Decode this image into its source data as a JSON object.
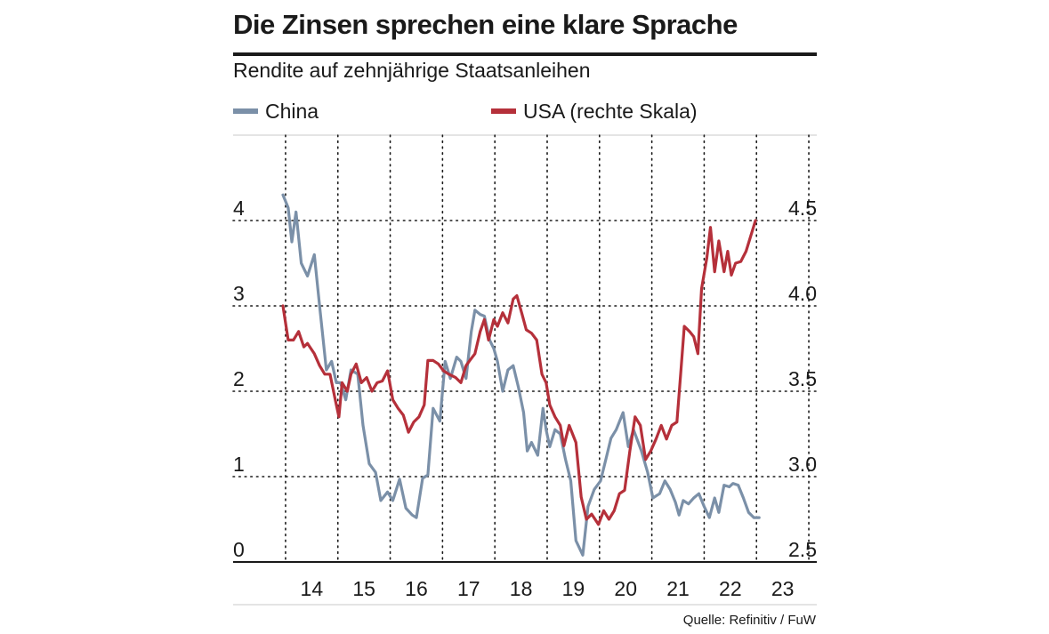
{
  "header": {
    "title": "Die Zinsen sprechen eine klare Sprache",
    "subtitle": "Rendite auf zehnjährige Staatsanleihen",
    "source": "Quelle: Refinitiv / FuW"
  },
  "chart_data": {
    "type": "line",
    "title": "Die Zinsen sprechen eine klare Sprache",
    "subtitle": "Rendite auf zehnjährige Staatsanleihen",
    "x_range": [
      2013.95,
      2023.2
    ],
    "x_ticks": [
      "14",
      "15",
      "16",
      "17",
      "18",
      "19",
      "20",
      "21",
      "22",
      "23"
    ],
    "y_left": {
      "ylim": [
        0,
        4
      ],
      "ticks": [
        "0",
        "1",
        "2",
        "3",
        "4"
      ]
    },
    "y_right": {
      "ylim": [
        2.5,
        4.5
      ],
      "ticks": [
        "2.5",
        "3.0",
        "3.5",
        "4.0",
        "4.5"
      ]
    },
    "grid": "dotted",
    "series": [
      {
        "name": "China",
        "axis": "left",
        "color": "#7b90a8",
        "points": [
          [
            2013.95,
            4.3
          ],
          [
            2014.05,
            4.15
          ],
          [
            2014.12,
            3.75
          ],
          [
            2014.2,
            4.1
          ],
          [
            2014.3,
            3.5
          ],
          [
            2014.42,
            3.35
          ],
          [
            2014.55,
            3.6
          ],
          [
            2014.65,
            3.0
          ],
          [
            2014.78,
            2.25
          ],
          [
            2014.88,
            2.35
          ],
          [
            2014.97,
            2.1
          ],
          [
            2015.05,
            2.1
          ],
          [
            2015.15,
            1.9
          ],
          [
            2015.25,
            2.25
          ],
          [
            2015.38,
            2.2
          ],
          [
            2015.48,
            1.6
          ],
          [
            2015.6,
            1.15
          ],
          [
            2015.72,
            1.05
          ],
          [
            2015.82,
            0.72
          ],
          [
            2015.95,
            0.82
          ],
          [
            2016.05,
            0.72
          ],
          [
            2016.18,
            0.97
          ],
          [
            2016.3,
            0.63
          ],
          [
            2016.42,
            0.55
          ],
          [
            2016.5,
            0.52
          ],
          [
            2016.62,
            0.98
          ],
          [
            2016.72,
            1.02
          ],
          [
            2016.82,
            1.8
          ],
          [
            2016.95,
            1.65
          ],
          [
            2017.05,
            2.35
          ],
          [
            2017.15,
            2.15
          ],
          [
            2017.27,
            2.4
          ],
          [
            2017.35,
            2.35
          ],
          [
            2017.45,
            2.15
          ],
          [
            2017.55,
            2.7
          ],
          [
            2017.62,
            2.95
          ],
          [
            2017.72,
            2.9
          ],
          [
            2017.8,
            2.88
          ],
          [
            2017.9,
            2.6
          ],
          [
            2017.98,
            2.5
          ],
          [
            2018.05,
            2.35
          ],
          [
            2018.15,
            2.0
          ],
          [
            2018.25,
            2.25
          ],
          [
            2018.35,
            2.3
          ],
          [
            2018.45,
            2.05
          ],
          [
            2018.55,
            1.75
          ],
          [
            2018.62,
            1.3
          ],
          [
            2018.7,
            1.4
          ],
          [
            2018.82,
            1.25
          ],
          [
            2018.92,
            1.8
          ],
          [
            2018.98,
            1.55
          ],
          [
            2019.05,
            1.35
          ],
          [
            2019.15,
            1.55
          ],
          [
            2019.25,
            1.5
          ],
          [
            2019.35,
            1.2
          ],
          [
            2019.45,
            0.95
          ],
          [
            2019.55,
            0.25
          ],
          [
            2019.68,
            0.08
          ],
          [
            2019.78,
            0.65
          ],
          [
            2019.9,
            0.85
          ],
          [
            2020.02,
            0.95
          ],
          [
            2020.12,
            1.2
          ],
          [
            2020.22,
            1.45
          ],
          [
            2020.32,
            1.55
          ],
          [
            2020.45,
            1.75
          ],
          [
            2020.55,
            1.35
          ],
          [
            2020.65,
            1.55
          ],
          [
            2020.8,
            1.3
          ],
          [
            2020.92,
            1.05
          ],
          [
            2021.02,
            0.75
          ],
          [
            2021.15,
            0.8
          ],
          [
            2021.25,
            0.95
          ],
          [
            2021.35,
            0.85
          ],
          [
            2021.45,
            0.7
          ],
          [
            2021.52,
            0.55
          ],
          [
            2021.6,
            0.72
          ],
          [
            2021.7,
            0.68
          ],
          [
            2021.8,
            0.75
          ],
          [
            2021.9,
            0.8
          ],
          [
            2022.0,
            0.65
          ],
          [
            2022.1,
            0.52
          ],
          [
            2022.2,
            0.75
          ],
          [
            2022.28,
            0.58
          ],
          [
            2022.38,
            0.9
          ],
          [
            2022.48,
            0.88
          ],
          [
            2022.55,
            0.92
          ],
          [
            2022.65,
            0.9
          ],
          [
            2022.75,
            0.75
          ],
          [
            2022.85,
            0.58
          ],
          [
            2022.95,
            0.52
          ],
          [
            2023.05,
            0.52
          ]
        ]
      },
      {
        "name": "USA (rechte Skala)",
        "axis": "right",
        "color": "#b5303a",
        "points": [
          [
            2013.95,
            4.0
          ],
          [
            2014.05,
            3.8
          ],
          [
            2014.15,
            3.8
          ],
          [
            2014.25,
            3.85
          ],
          [
            2014.35,
            3.76
          ],
          [
            2014.42,
            3.78
          ],
          [
            2014.55,
            3.72
          ],
          [
            2014.65,
            3.65
          ],
          [
            2014.75,
            3.6
          ],
          [
            2014.85,
            3.6
          ],
          [
            2014.95,
            3.45
          ],
          [
            2015.02,
            3.35
          ],
          [
            2015.08,
            3.55
          ],
          [
            2015.18,
            3.5
          ],
          [
            2015.25,
            3.6
          ],
          [
            2015.35,
            3.66
          ],
          [
            2015.45,
            3.55
          ],
          [
            2015.55,
            3.58
          ],
          [
            2015.65,
            3.5
          ],
          [
            2015.75,
            3.55
          ],
          [
            2015.85,
            3.56
          ],
          [
            2015.95,
            3.62
          ],
          [
            2016.05,
            3.45
          ],
          [
            2016.15,
            3.4
          ],
          [
            2016.25,
            3.36
          ],
          [
            2016.35,
            3.26
          ],
          [
            2016.45,
            3.32
          ],
          [
            2016.55,
            3.35
          ],
          [
            2016.65,
            3.42
          ],
          [
            2016.72,
            3.68
          ],
          [
            2016.82,
            3.68
          ],
          [
            2016.92,
            3.66
          ],
          [
            2017.02,
            3.62
          ],
          [
            2017.12,
            3.6
          ],
          [
            2017.25,
            3.58
          ],
          [
            2017.35,
            3.55
          ],
          [
            2017.45,
            3.65
          ],
          [
            2017.52,
            3.68
          ],
          [
            2017.62,
            3.72
          ],
          [
            2017.72,
            3.85
          ],
          [
            2017.8,
            3.92
          ],
          [
            2017.88,
            3.8
          ],
          [
            2017.98,
            3.92
          ],
          [
            2018.05,
            3.88
          ],
          [
            2018.15,
            3.96
          ],
          [
            2018.25,
            3.9
          ],
          [
            2018.35,
            4.04
          ],
          [
            2018.42,
            4.06
          ],
          [
            2018.52,
            3.95
          ],
          [
            2018.6,
            3.86
          ],
          [
            2018.7,
            3.84
          ],
          [
            2018.8,
            3.8
          ],
          [
            2018.9,
            3.6
          ],
          [
            2018.98,
            3.55
          ],
          [
            2019.05,
            3.42
          ],
          [
            2019.15,
            3.35
          ],
          [
            2019.25,
            3.3
          ],
          [
            2019.32,
            3.18
          ],
          [
            2019.42,
            3.3
          ],
          [
            2019.55,
            3.2
          ],
          [
            2019.65,
            2.88
          ],
          [
            2019.75,
            2.75
          ],
          [
            2019.85,
            2.78
          ],
          [
            2019.98,
            2.72
          ],
          [
            2020.08,
            2.8
          ],
          [
            2020.18,
            2.75
          ],
          [
            2020.28,
            2.8
          ],
          [
            2020.38,
            2.9
          ],
          [
            2020.48,
            2.92
          ],
          [
            2020.58,
            3.15
          ],
          [
            2020.68,
            3.35
          ],
          [
            2020.78,
            3.3
          ],
          [
            2020.88,
            3.1
          ],
          [
            2020.98,
            3.15
          ],
          [
            2021.08,
            3.22
          ],
          [
            2021.18,
            3.3
          ],
          [
            2021.28,
            3.22
          ],
          [
            2021.38,
            3.3
          ],
          [
            2021.48,
            3.32
          ],
          [
            2021.55,
            3.6
          ],
          [
            2021.62,
            3.88
          ],
          [
            2021.72,
            3.85
          ],
          [
            2021.8,
            3.82
          ],
          [
            2021.88,
            3.72
          ],
          [
            2021.95,
            4.1
          ],
          [
            2022.05,
            4.28
          ],
          [
            2022.12,
            4.46
          ],
          [
            2022.2,
            4.2
          ],
          [
            2022.28,
            4.38
          ],
          [
            2022.38,
            4.2
          ],
          [
            2022.45,
            4.32
          ],
          [
            2022.52,
            4.18
          ],
          [
            2022.6,
            4.25
          ],
          [
            2022.7,
            4.26
          ],
          [
            2022.8,
            4.32
          ],
          [
            2022.9,
            4.42
          ],
          [
            2022.98,
            4.5
          ]
        ]
      }
    ]
  }
}
